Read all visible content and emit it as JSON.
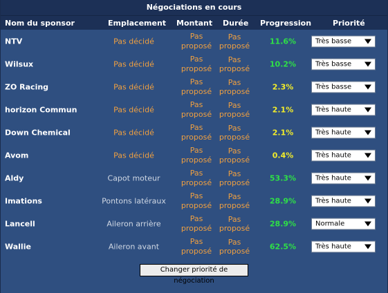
{
  "title": "Négociations en cours",
  "columns": {
    "sponsor": "Nom du sponsor",
    "emplacement": "Emplacement",
    "montant": "Montant",
    "duree": "Durée",
    "progression": "Progression",
    "priorite": "Priorité"
  },
  "rows": [
    {
      "name": "NTV",
      "emplacement": "Pas décidé",
      "montant_line1": "Pas",
      "montant_line2": "proposé",
      "duree": "Pas proposé",
      "progression": "11.6%",
      "priorite": "Très basse"
    },
    {
      "name": "Wilsux",
      "emplacement": "Pas décidé",
      "montant_line1": "Pas",
      "montant_line2": "proposé",
      "duree": "Pas proposé",
      "progression": "10.2%",
      "priorite": "Très basse"
    },
    {
      "name": "ZO Racing",
      "emplacement": "Pas décidé",
      "montant_line1": "Pas",
      "montant_line2": "proposé",
      "duree": "Pas proposé",
      "progression": "2.3%",
      "priorite": "Très basse"
    },
    {
      "name": "horizon Commun",
      "emplacement": "Pas décidé",
      "montant_line1": "Pas",
      "montant_line2": "proposé",
      "duree": "Pas proposé",
      "progression": "2.1%",
      "priorite": "Très haute"
    },
    {
      "name": "Down Chemical",
      "emplacement": "Pas décidé",
      "montant_line1": "Pas",
      "montant_line2": "proposé",
      "duree": "Pas proposé",
      "progression": "2.1%",
      "priorite": "Très haute"
    },
    {
      "name": "Avom",
      "emplacement": "Pas décidé",
      "montant_line1": "Pas",
      "montant_line2": "proposé",
      "duree": "Pas proposé",
      "progression": "0.4%",
      "priorite": "Très haute"
    },
    {
      "name": "Aldy",
      "emplacement": "Capot moteur",
      "montant_line1": "Pas",
      "montant_line2": "proposé",
      "duree": "Pas proposé",
      "progression": "53.3%",
      "priorite": "Très haute"
    },
    {
      "name": "Imations",
      "emplacement": "Pontons latéraux",
      "montant_line1": "Pas",
      "montant_line2": "proposé",
      "duree": "Pas proposé",
      "progression": "28.9%",
      "priorite": "Très haute"
    },
    {
      "name": "Lancell",
      "emplacement": "Aileron arrière",
      "montant_line1": "Pas",
      "montant_line2": "proposé",
      "duree": "Pas proposé",
      "progression": "28.9%",
      "priorite": "Normale"
    },
    {
      "name": "Wallie",
      "emplacement": "Aileron avant",
      "montant_line1": "Pas",
      "montant_line2": "proposé",
      "duree": "Pas proposé",
      "progression": "62.5%",
      "priorite": "Très haute"
    }
  ],
  "action_button": "Changer priorité de négociation",
  "colors": {
    "background": "#2f4f80",
    "header": "#1c3056",
    "undecided_text": "#f0a040",
    "progress_green": "#2ee046",
    "progress_yellow": "#f2ec2a"
  }
}
